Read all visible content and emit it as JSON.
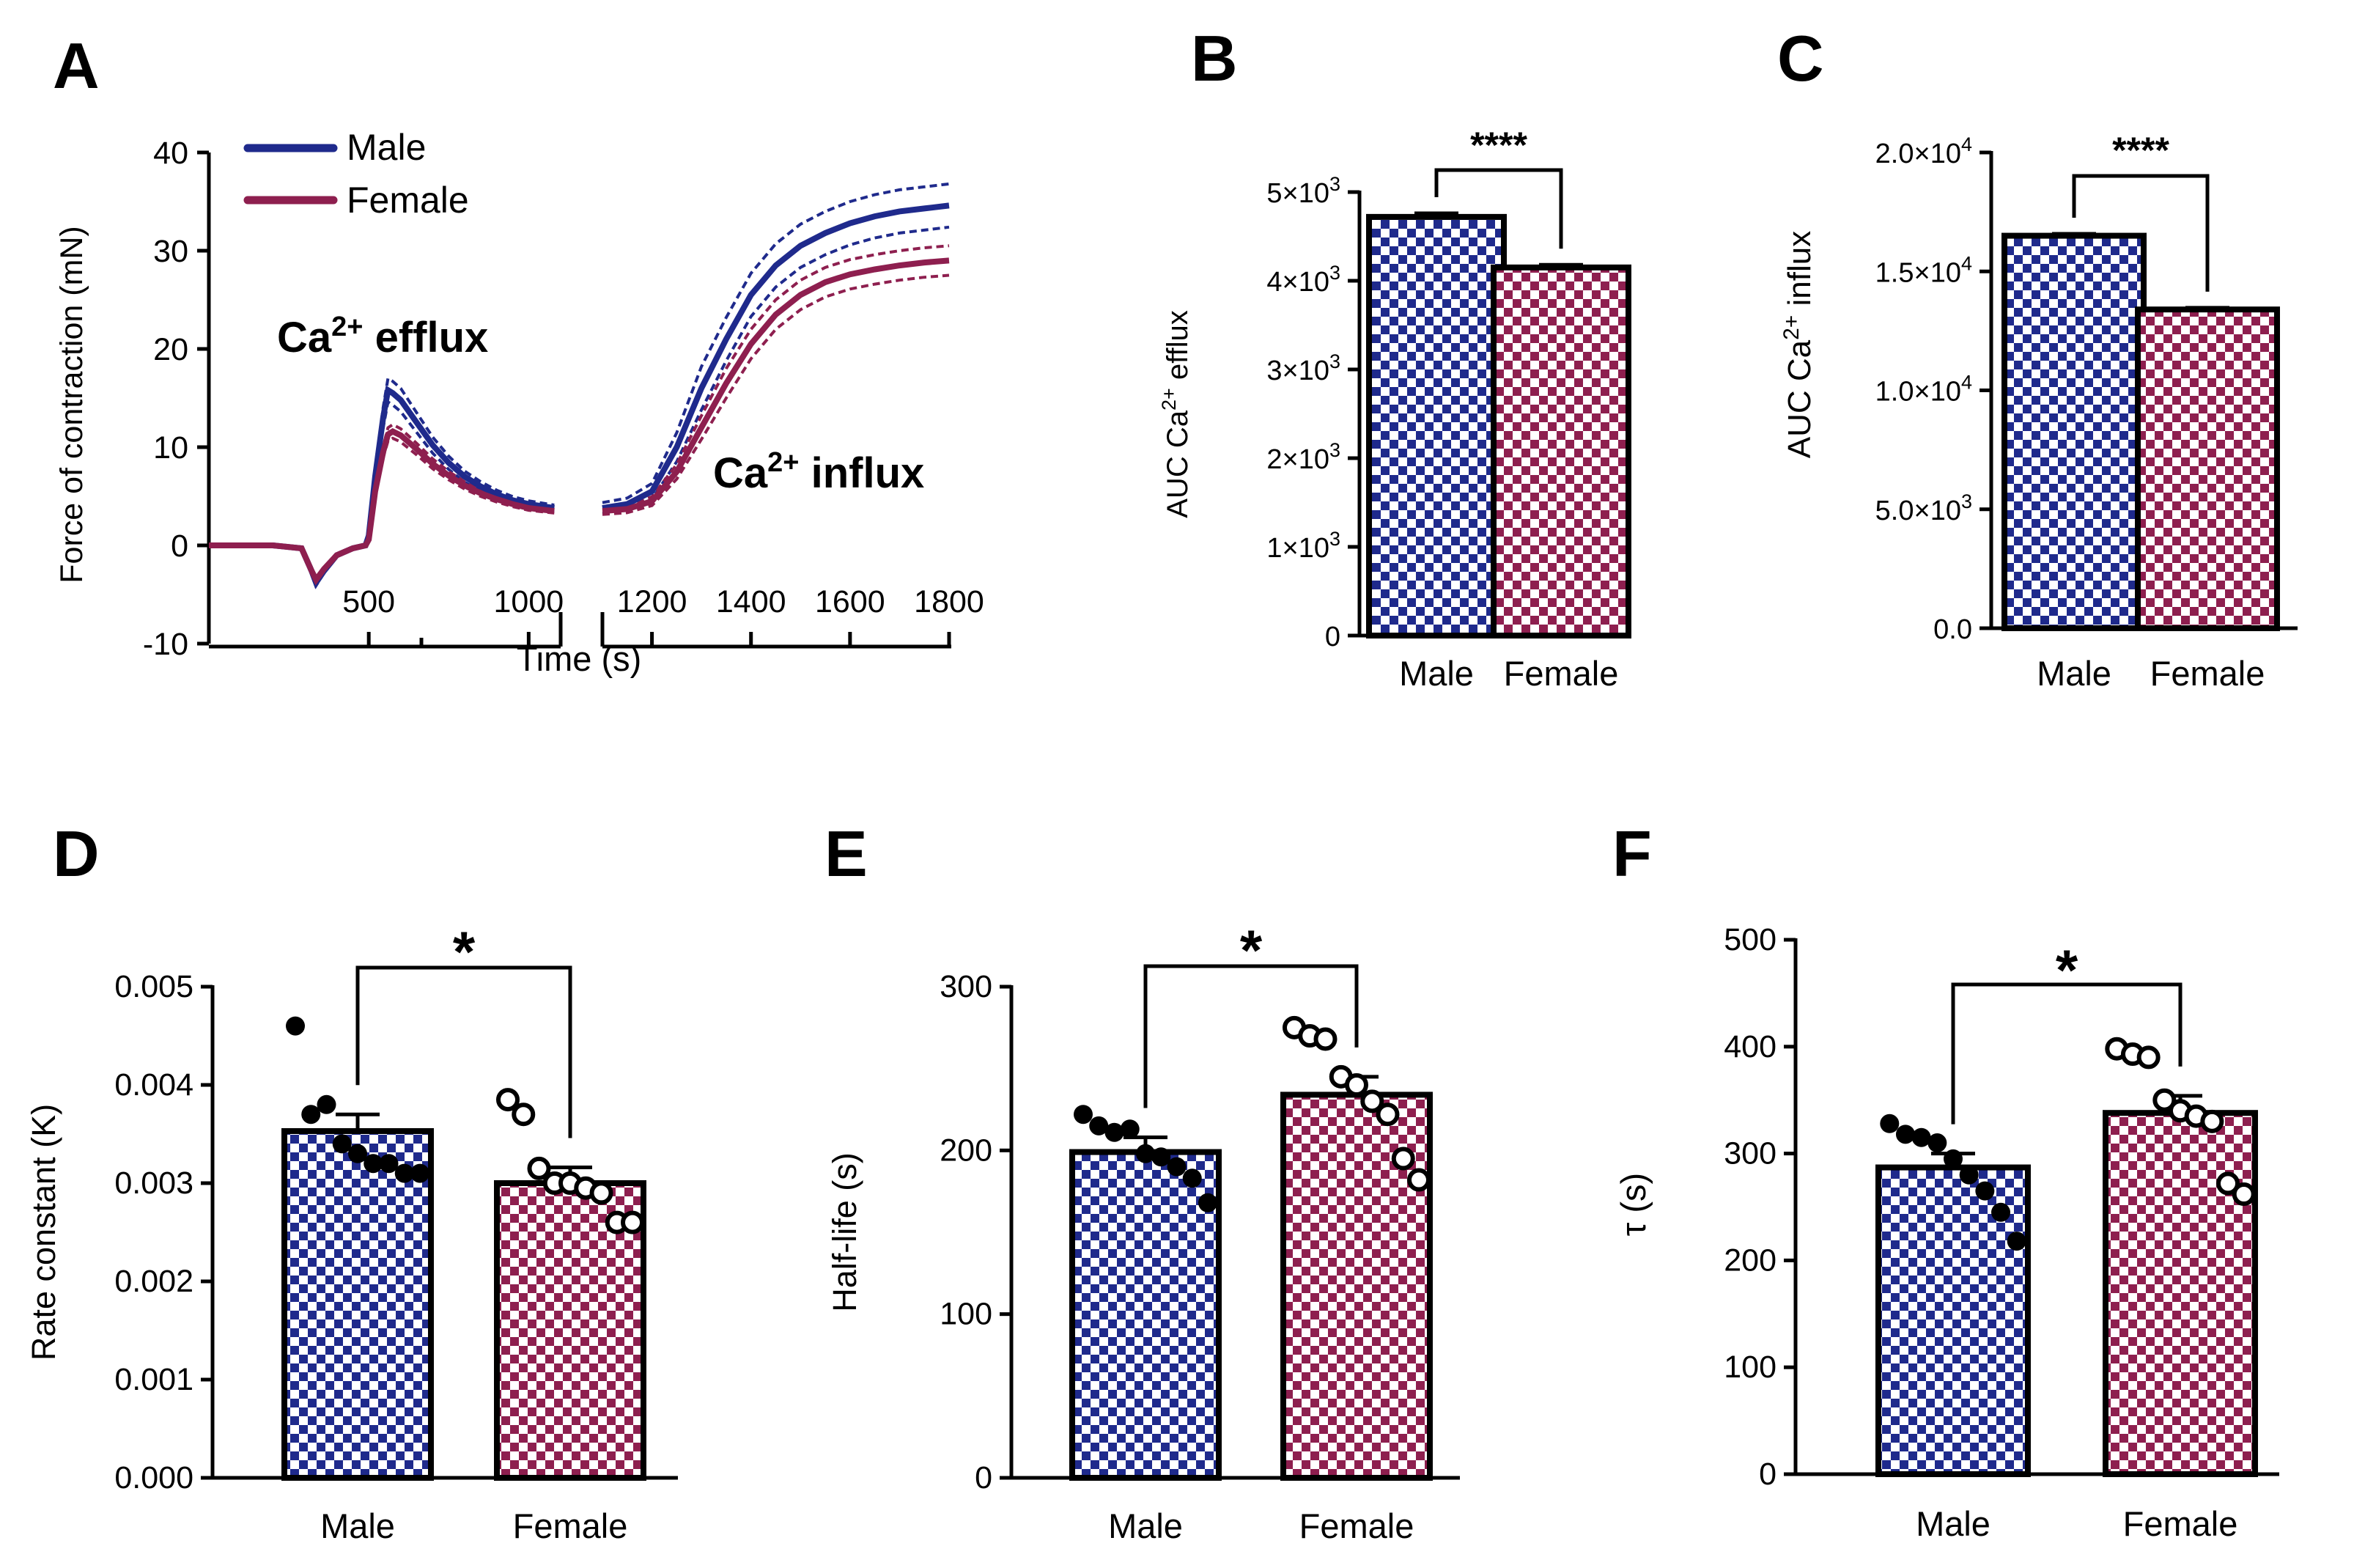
{
  "colors": {
    "male": "#1f2a8c",
    "female": "#8e1f4f",
    "axis": "#000000"
  },
  "chart_data": [
    {
      "panel": "A",
      "type": "line",
      "xlabel": "Time (s)",
      "ylabel": "Force of contraction (mN)",
      "ylim": [
        -10,
        40
      ],
      "yticks": [
        "-10",
        "0",
        "10",
        "20",
        "30",
        "40"
      ],
      "xticks_left": [
        "500",
        "1000"
      ],
      "xticks_right": [
        "1200",
        "1400",
        "1600",
        "1800"
      ],
      "xlim_left": [
        0,
        1100
      ],
      "xlim_right": [
        1100,
        1800
      ],
      "annotations": {
        "efflux_prefix": "Ca",
        "efflux_sup": "2+",
        "efflux_suffix": " efflux",
        "influx_prefix": "Ca",
        "influx_sup": "2+",
        "influx_suffix": " influx"
      },
      "legend": [
        "Male",
        "Female"
      ],
      "series": [
        {
          "name": "Male",
          "segment1": {
            "x": [
              0,
              100,
              200,
              290,
              320,
              335,
              360,
              400,
              450,
              490,
              500,
              520,
              545,
              560,
              575,
              600,
              650,
              700,
              750,
              800,
              850,
              900,
              950,
              1000,
              1080
            ],
            "y": [
              0,
              0,
              0,
              -0.3,
              -2.5,
              -3.8,
              -2.6,
              -1.0,
              -0.3,
              0,
              1,
              7,
              13,
              15.8,
              15.5,
              14.8,
              12.5,
              10.2,
              8.4,
              7.0,
              6.0,
              5.2,
              4.6,
              4.2,
              3.8
            ]
          },
          "segment2": {
            "x": [
              1100,
              1150,
              1200,
              1250,
              1300,
              1350,
              1400,
              1450,
              1500,
              1550,
              1600,
              1650,
              1700,
              1750,
              1800
            ],
            "y": [
              3.8,
              4.2,
              5.5,
              10,
              16,
              21,
              25.5,
              28.5,
              30.5,
              31.8,
              32.8,
              33.5,
              34,
              34.3,
              34.6
            ]
          },
          "sem": [
            1.2,
            2.2
          ]
        },
        {
          "name": "Female",
          "segment1": {
            "x": [
              0,
              100,
              200,
              290,
              320,
              335,
              360,
              400,
              450,
              490,
              500,
              520,
              545,
              560,
              575,
              600,
              650,
              700,
              750,
              800,
              850,
              900,
              950,
              1000,
              1080
            ],
            "y": [
              0,
              0,
              0,
              -0.3,
              -2.5,
              -3.5,
              -2.4,
              -1.0,
              -0.3,
              0,
              0.6,
              5.5,
              9.5,
              11.3,
              11.6,
              11.2,
              9.8,
              8.3,
              7.1,
              6.1,
              5.3,
              4.7,
              4.2,
              3.8,
              3.5
            ]
          },
          "segment2": {
            "x": [
              1100,
              1150,
              1200,
              1250,
              1300,
              1350,
              1400,
              1450,
              1500,
              1550,
              1600,
              1650,
              1700,
              1750,
              1800
            ],
            "y": [
              3.5,
              3.7,
              4.5,
              7.5,
              12,
              16.5,
              20.5,
              23.5,
              25.5,
              26.8,
              27.6,
              28.1,
              28.5,
              28.8,
              29
            ]
          },
          "sem": [
            0.9,
            1.5
          ]
        }
      ]
    },
    {
      "panel": "B",
      "type": "bar",
      "categories": [
        "Male",
        "Female"
      ],
      "values": [
        4720,
        4150
      ],
      "sem": [
        40,
        30
      ],
      "ylim": [
        0,
        5000
      ],
      "yticks": [
        0,
        1000,
        2000,
        3000,
        4000,
        5000
      ],
      "ytick_labels": [
        {
          "base": "0",
          "exp": ""
        },
        {
          "base": "1×10",
          "exp": "3"
        },
        {
          "base": "2×10",
          "exp": "3"
        },
        {
          "base": "3×10",
          "exp": "3"
        },
        {
          "base": "4×10",
          "exp": "3"
        },
        {
          "base": "5×10",
          "exp": "3"
        }
      ],
      "ylabel": {
        "pre": "AUC Ca",
        "sup": "2+",
        "post": " efflux"
      },
      "significance": "****"
    },
    {
      "panel": "C",
      "type": "bar",
      "categories": [
        "Male",
        "Female"
      ],
      "values": [
        16500,
        13400
      ],
      "sem": [
        80,
        70
      ],
      "ylim": [
        0,
        20000
      ],
      "yticks": [
        0,
        5000,
        10000,
        15000,
        20000
      ],
      "ytick_labels": [
        {
          "base": "0.0",
          "exp": ""
        },
        {
          "base": "5.0×10",
          "exp": "3"
        },
        {
          "base": "1.0×10",
          "exp": "4"
        },
        {
          "base": "1.5×10",
          "exp": "4"
        },
        {
          "base": "2.0×10",
          "exp": "4"
        }
      ],
      "ylabel": {
        "pre": "AUC Ca",
        "sup": "2+",
        "post": " influx"
      },
      "significance": "****"
    },
    {
      "panel": "D",
      "type": "bar",
      "categories": [
        "Male",
        "Female"
      ],
      "values": [
        0.00353,
        0.003
      ],
      "sem": [
        0.00017,
        0.00016
      ],
      "ylim": [
        0,
        0.005
      ],
      "yticks": [
        0,
        0.001,
        0.002,
        0.003,
        0.004,
        0.005
      ],
      "ytick_labels": [
        {
          "base": "0.000"
        },
        {
          "base": "0.001"
        },
        {
          "base": "0.002"
        },
        {
          "base": "0.003"
        },
        {
          "base": "0.004"
        },
        {
          "base": "0.005"
        }
      ],
      "ylabel": {
        "pre": "Rate constant (K)"
      },
      "points": [
        [
          0.0046,
          0.0037,
          0.0038,
          0.0034,
          0.0033,
          0.0032,
          0.0032,
          0.0031,
          0.0031
        ],
        [
          0.00385,
          0.0037,
          0.00315,
          0.003,
          0.003,
          0.00295,
          0.0029,
          0.0026,
          0.0026
        ]
      ],
      "significance": "*"
    },
    {
      "panel": "E",
      "type": "bar",
      "categories": [
        "Male",
        "Female"
      ],
      "values": [
        199,
        234
      ],
      "sem": [
        9,
        11
      ],
      "ylim": [
        0,
        300
      ],
      "yticks": [
        0,
        100,
        200,
        300
      ],
      "ytick_labels": [
        {
          "base": "0"
        },
        {
          "base": "100"
        },
        {
          "base": "200"
        },
        {
          "base": "300"
        }
      ],
      "ylabel": {
        "pre": "Half-life (s)"
      },
      "points": [
        [
          222,
          215,
          211,
          213,
          198,
          196,
          190,
          183,
          168
        ],
        [
          275,
          270,
          268,
          245,
          240,
          230,
          222,
          195,
          182
        ]
      ],
      "significance": "*"
    },
    {
      "panel": "F",
      "type": "bar",
      "categories": [
        "Male",
        "Female"
      ],
      "values": [
        287,
        338
      ],
      "sem": [
        13,
        16
      ],
      "ylim": [
        0,
        500
      ],
      "yticks": [
        0,
        100,
        200,
        300,
        400,
        500
      ],
      "ytick_labels": [
        {
          "base": "0"
        },
        {
          "base": "100"
        },
        {
          "base": "200"
        },
        {
          "base": "300"
        },
        {
          "base": "400"
        },
        {
          "base": "500"
        }
      ],
      "ylabel": {
        "pre": "τ (s)"
      },
      "points": [
        [
          328,
          318,
          315,
          310,
          295,
          280,
          265,
          245,
          218
        ],
        [
          398,
          393,
          390,
          350,
          340,
          335,
          330,
          272,
          262
        ]
      ],
      "significance": "*"
    }
  ]
}
